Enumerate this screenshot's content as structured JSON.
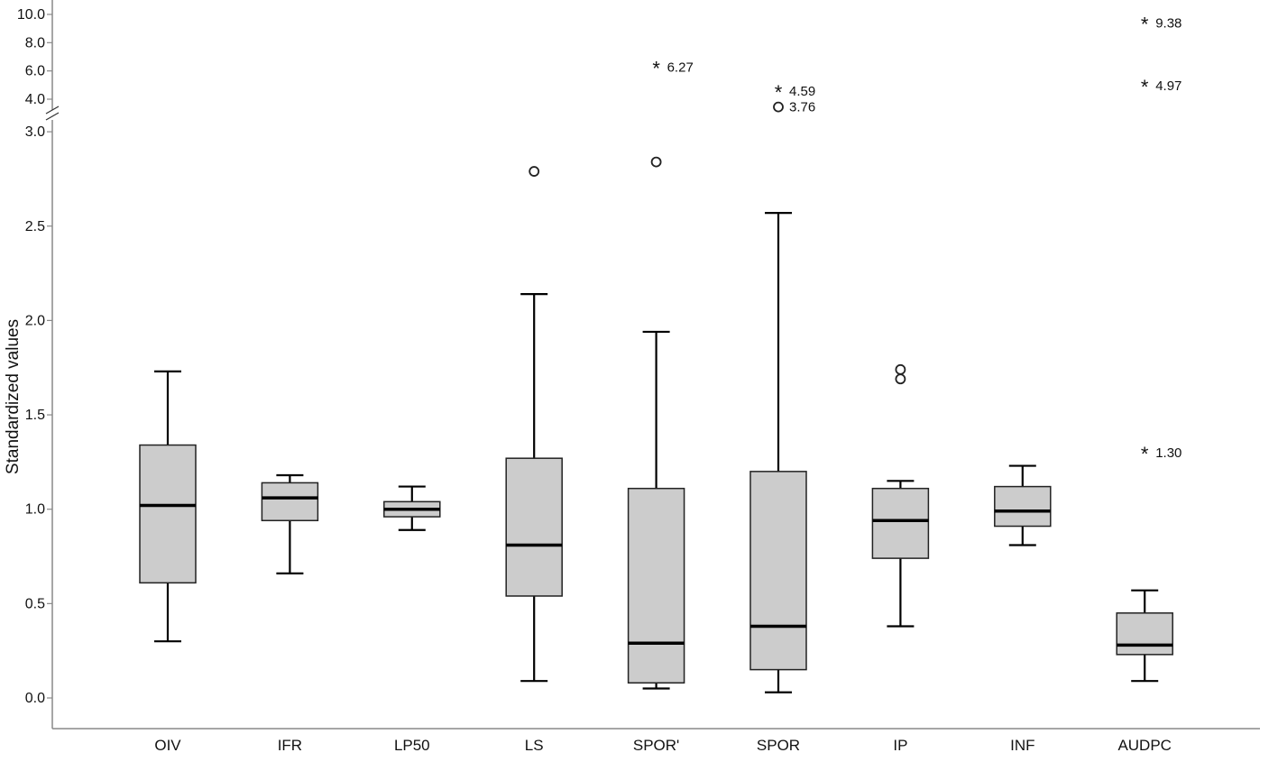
{
  "chart_data": {
    "type": "boxplot",
    "ylabel": "Standardized values",
    "y_axis": {
      "lower_range": [
        0,
        3.0
      ],
      "lower_ticks": [
        "0.0",
        "0.5",
        "1.0",
        "1.5",
        "2.0",
        "2.5",
        "3.0"
      ],
      "lower_tick_values": [
        0,
        0.5,
        1.0,
        1.5,
        2.0,
        2.5,
        3.0
      ],
      "upper_range": [
        3.0,
        10.0
      ],
      "upper_ticks": [
        "4.0",
        "6.0",
        "8.0",
        "10.0"
      ],
      "upper_tick_values": [
        4,
        6,
        8,
        10
      ],
      "axis_break": true
    },
    "categories": [
      "OIV",
      "IFR",
      "LP50",
      "LS",
      "SPOR'",
      "SPOR",
      "IP",
      "INF",
      "AUDPC"
    ],
    "boxes": [
      {
        "category": "OIV",
        "min": 0.3,
        "q1": 0.61,
        "median": 1.02,
        "q3": 1.34,
        "max": 1.73
      },
      {
        "category": "IFR",
        "min": 0.66,
        "q1": 0.94,
        "median": 1.06,
        "q3": 1.14,
        "max": 1.18
      },
      {
        "category": "LP50",
        "min": 0.89,
        "q1": 0.96,
        "median": 1.0,
        "q3": 1.04,
        "max": 1.12
      },
      {
        "category": "LS",
        "min": 0.09,
        "q1": 0.54,
        "median": 0.81,
        "q3": 1.27,
        "max": 2.14
      },
      {
        "category": "SPOR'",
        "min": 0.05,
        "q1": 0.08,
        "median": 0.29,
        "q3": 1.11,
        "max": 1.94
      },
      {
        "category": "SPOR",
        "min": 0.03,
        "q1": 0.15,
        "median": 0.38,
        "q3": 1.2,
        "max": 2.57
      },
      {
        "category": "IP",
        "min": 0.38,
        "q1": 0.74,
        "median": 0.94,
        "q3": 1.11,
        "max": 1.15
      },
      {
        "category": "INF",
        "min": 0.81,
        "q1": 0.91,
        "median": 0.99,
        "q3": 1.12,
        "max": 1.23
      },
      {
        "category": "AUDPC",
        "min": 0.09,
        "q1": 0.23,
        "median": 0.28,
        "q3": 0.45,
        "max": 0.57
      }
    ],
    "outliers": [
      {
        "category": "LS",
        "value": 2.79,
        "marker": "circle"
      },
      {
        "category": "SPOR'",
        "value": 2.84,
        "marker": "circle"
      },
      {
        "category": "SPOR",
        "value": 3.76,
        "marker": "circle",
        "label": "3.76"
      },
      {
        "category": "SPOR",
        "value": 4.59,
        "marker": "star",
        "label": "4.59"
      },
      {
        "category": "SPOR'",
        "value": 6.27,
        "marker": "star",
        "label": "6.27"
      },
      {
        "category": "IP",
        "value": 1.74,
        "marker": "circle"
      },
      {
        "category": "IP",
        "value": 1.69,
        "marker": "circle"
      },
      {
        "category": "AUDPC",
        "value": 1.3,
        "marker": "star",
        "label": "1.30"
      },
      {
        "category": "AUDPC",
        "value": 4.97,
        "marker": "star",
        "label": "4.97"
      },
      {
        "category": "AUDPC",
        "value": 9.38,
        "marker": "star",
        "label": "9.38"
      }
    ],
    "colors": {
      "box_fill": "#cccccc",
      "stroke": "#000000",
      "axis": "#888888"
    },
    "grid": false,
    "legend": "none"
  }
}
